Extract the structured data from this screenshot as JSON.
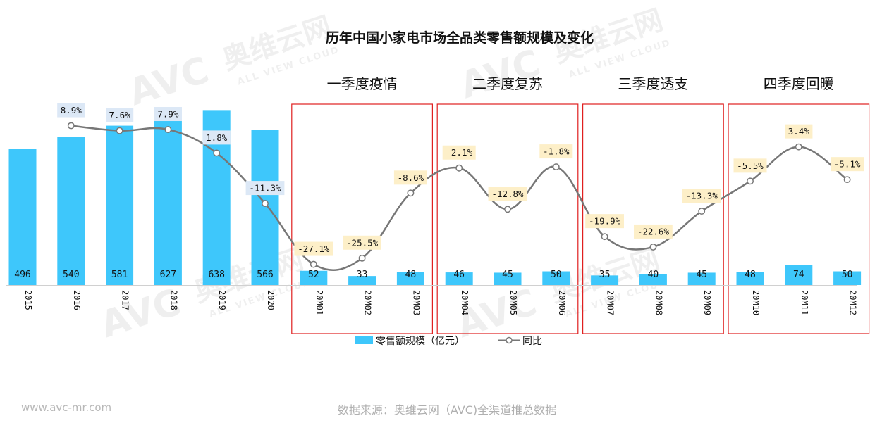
{
  "chart_data": {
    "type": "bar",
    "title": "历年中国小家电市场全品类零售额规模及变化",
    "categories": [
      "2015",
      "2016",
      "2017",
      "2018",
      "2019",
      "2020",
      "20M01",
      "20M02",
      "20M03",
      "20M04",
      "20M05",
      "20M06",
      "20M07",
      "20M08",
      "20M09",
      "20M10",
      "20M11",
      "20M12"
    ],
    "series": [
      {
        "name": "零售额规模（亿元）",
        "type": "bar",
        "values": [
          496,
          540,
          581,
          627,
          638,
          566,
          52,
          33,
          48,
          46,
          45,
          50,
          35,
          40,
          45,
          48,
          74,
          50
        ],
        "color": "#3ec7fb"
      },
      {
        "name": "同比",
        "type": "line",
        "values": [
          null,
          8.9,
          7.6,
          7.9,
          1.8,
          -11.3,
          -27.1,
          -25.5,
          -8.6,
          -2.1,
          -12.8,
          -1.8,
          -19.9,
          -22.6,
          -13.3,
          -5.5,
          3.4,
          -5.1
        ],
        "labels": [
          null,
          "8.9%",
          "7.6%",
          "7.9%",
          "1.8%",
          "-11.3%",
          "-27.1%",
          "-25.5%",
          "-8.6%",
          "-2.1%",
          "-12.8%",
          "-1.8%",
          "-19.9%",
          "-22.6%",
          "-13.3%",
          "-5.5%",
          "3.4%",
          "-5.1%"
        ],
        "color": "#777777"
      }
    ],
    "groups": [
      {
        "label": "一季度疫情",
        "categories": [
          "20M01",
          "20M02",
          "20M03"
        ]
      },
      {
        "label": "二季度复苏",
        "categories": [
          "20M04",
          "20M05",
          "20M06"
        ]
      },
      {
        "label": "三季度透支",
        "categories": [
          "20M07",
          "20M08",
          "20M09"
        ]
      },
      {
        "label": "四季度回暖",
        "categories": [
          "20M10",
          "20M11",
          "20M12"
        ]
      }
    ],
    "legend": {
      "position": "bottom"
    },
    "grid": false,
    "colors": {
      "bar": "#3ec7fb",
      "line": "#777777",
      "group_box": "#e02020",
      "label_box_annual": "#dce8f6",
      "label_box_monthly": "#fdefc8"
    }
  },
  "watermark": {
    "brand": "AVC",
    "cn": "奥维云网",
    "en": "ALL VIEW CLOUD"
  },
  "footer": {
    "website": "www.avc-mr.com",
    "source": "数据来源：奥维云网（AVC)全渠道推总数据"
  }
}
